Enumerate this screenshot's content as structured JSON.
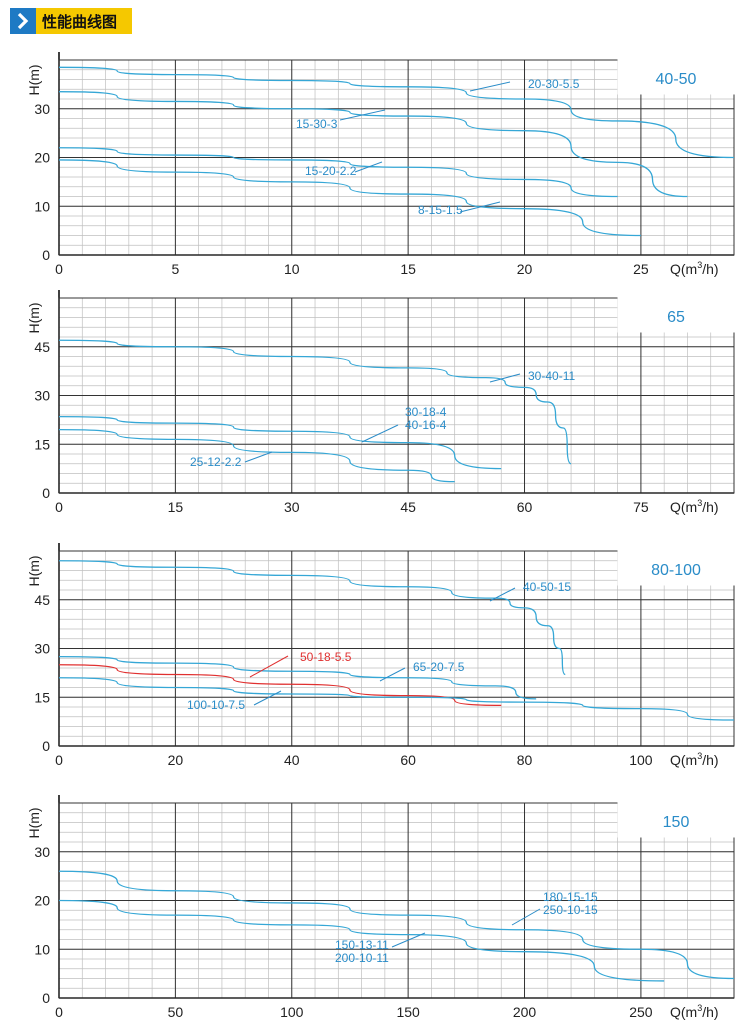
{
  "header": {
    "title": "性能曲线图",
    "icon": "chevron-right-icon"
  },
  "colors": {
    "curve": "#35a7d6",
    "highlight": "#e03030",
    "label": "#2a8cc8",
    "grid_major": "#333333",
    "grid_minor": "#bfbfbf"
  },
  "chart_data": [
    {
      "type": "line",
      "title": "40-50",
      "ylabel": "H(m)",
      "xlabel": "Q(m³/h)",
      "xlim": [
        0,
        29
      ],
      "ylim": [
        0,
        40
      ],
      "xticks": [
        "0",
        "5",
        "10",
        "15",
        "20",
        "25"
      ],
      "yticks": [
        "0",
        "10",
        "20",
        "30"
      ],
      "grid": true,
      "series": [
        {
          "name": "20-30-5.5",
          "x": [
            0,
            5,
            10,
            15,
            20,
            24,
            29
          ],
          "y": [
            38.5,
            37.0,
            35.8,
            34.5,
            32.0,
            27.5,
            20.0
          ]
        },
        {
          "name": "15-30-3",
          "x": [
            0,
            5,
            10,
            15,
            20,
            24,
            27
          ],
          "y": [
            33.5,
            31.5,
            30.0,
            28.5,
            25.5,
            19.0,
            12.0
          ]
        },
        {
          "name": "15-20-2.2",
          "x": [
            0,
            5,
            10,
            15,
            20,
            24
          ],
          "y": [
            22.0,
            20.5,
            19.5,
            18.0,
            15.5,
            12.0
          ]
        },
        {
          "name": "8-15-1.5",
          "x": [
            0,
            5,
            10,
            15,
            20,
            25
          ],
          "y": [
            19.5,
            17.0,
            15.0,
            12.5,
            9.5,
            4.0
          ]
        }
      ]
    },
    {
      "type": "line",
      "title": "65",
      "ylabel": "H(m)",
      "xlabel": "Q(m³/h)",
      "xlim": [
        0,
        87
      ],
      "ylim": [
        0,
        60
      ],
      "xticks": [
        "0",
        "15",
        "30",
        "45",
        "60",
        "75"
      ],
      "yticks": [
        "0",
        "15",
        "30",
        "45"
      ],
      "grid": true,
      "series": [
        {
          "name": "30-40-11",
          "x": [
            0,
            15,
            30,
            45,
            55,
            60,
            63,
            65,
            66
          ],
          "y": [
            47.0,
            45.0,
            42.0,
            38.5,
            35.5,
            32.5,
            28.0,
            20.0,
            9.0
          ]
        },
        {
          "name": "30-18-4 / 40-16-4",
          "x": [
            0,
            15,
            30,
            45,
            57
          ],
          "y": [
            23.5,
            21.5,
            19.0,
            15.5,
            7.5
          ]
        },
        {
          "name": "25-12-2.2",
          "x": [
            0,
            15,
            30,
            45,
            51
          ],
          "y": [
            19.5,
            16.5,
            12.5,
            7.0,
            3.5
          ]
        }
      ]
    },
    {
      "type": "line",
      "title": "80-100",
      "ylabel": "H(m)",
      "xlabel": "Q(m³/h)",
      "xlim": [
        0,
        116
      ],
      "ylim": [
        0,
        60
      ],
      "xticks": [
        "0",
        "20",
        "40",
        "60",
        "80",
        "100"
      ],
      "yticks": [
        "0",
        "15",
        "30",
        "45"
      ],
      "grid": true,
      "series": [
        {
          "name": "40-50-15",
          "x": [
            0,
            20,
            40,
            60,
            75,
            80,
            84,
            86,
            87
          ],
          "y": [
            57.0,
            55.0,
            52.5,
            49.0,
            45.5,
            42.5,
            37.0,
            30.0,
            22.0
          ]
        },
        {
          "name": "50-18-5.5",
          "x": [
            0,
            20,
            40,
            60,
            76
          ],
          "y": [
            25.0,
            22.0,
            19.0,
            15.5,
            12.5
          ]
        },
        {
          "name": "65-20-7.5",
          "x": [
            0,
            20,
            40,
            60,
            75,
            82
          ],
          "y": [
            27.5,
            25.5,
            23.0,
            21.0,
            18.5,
            14.5
          ]
        },
        {
          "name": "100-10-7.5",
          "x": [
            0,
            20,
            40,
            60,
            80,
            100,
            116
          ],
          "y": [
            21.0,
            18.0,
            16.0,
            15.0,
            13.5,
            11.5,
            8.0
          ]
        }
      ]
    },
    {
      "type": "line",
      "title": "150",
      "ylabel": "H(m)",
      "xlabel": "Q(m³/h)",
      "xlim": [
        0,
        290
      ],
      "ylim": [
        0,
        40
      ],
      "xticks": [
        "0",
        "50",
        "100",
        "150",
        "200",
        "250"
      ],
      "yticks": [
        "0",
        "10",
        "20",
        "30"
      ],
      "grid": true,
      "series": [
        {
          "name": "180-15-15 / 250-10-15",
          "x": [
            0,
            50,
            100,
            150,
            200,
            250,
            290
          ],
          "y": [
            26.0,
            22.0,
            19.5,
            17.0,
            14.0,
            10.0,
            4.0
          ]
        },
        {
          "name": "150-13-11 / 200-10-11",
          "x": [
            0,
            50,
            100,
            150,
            200,
            260
          ],
          "y": [
            20.0,
            17.0,
            15.0,
            13.0,
            9.5,
            3.5
          ]
        }
      ],
      "annotations": [
        "180-15-15",
        "250-10-15",
        "150-13-11",
        "200-10-11"
      ]
    }
  ],
  "labels": [
    [
      "20-30-5.5"
    ],
    [
      "15-30-3"
    ],
    [
      "15-20-2.2"
    ],
    [
      "8-15-1.5"
    ],
    [
      "30-40-11"
    ],
    [
      "30-18-4",
      "40-16-4"
    ],
    [
      "25-12-2.2"
    ],
    [
      "40-50-15"
    ],
    [
      "50-18-5.5"
    ],
    [
      "65-20-7.5"
    ],
    [
      "100-10-7.5"
    ],
    [
      "180-15-15",
      "250-10-15"
    ],
    [
      "150-13-11",
      "200-10-11"
    ]
  ]
}
